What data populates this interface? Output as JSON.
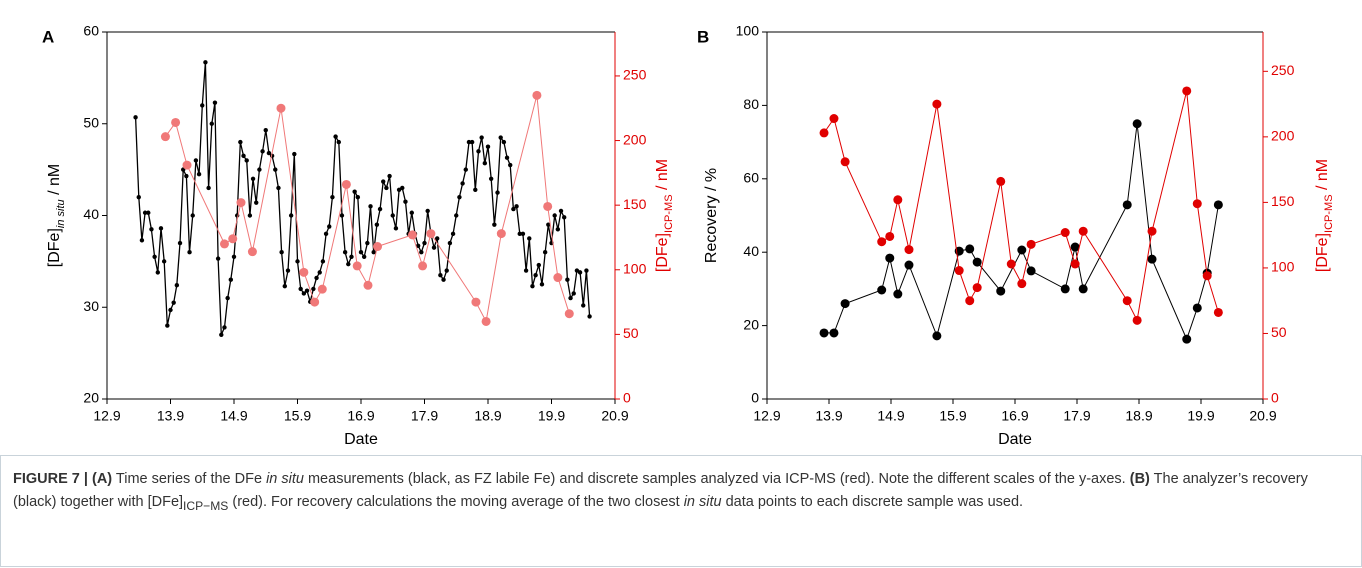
{
  "chart_data": [
    {
      "type": "line",
      "panel_label": "A",
      "xlabel": "Date",
      "ylabel": [
        "[DFe]",
        "in situ",
        " / nM"
      ],
      "y2label": [
        "[DFe]",
        "ICP-MS",
        " / nM"
      ],
      "xlim": [
        12.9,
        20.9
      ],
      "xticks": [
        12.9,
        13.9,
        14.9,
        15.9,
        16.9,
        17.9,
        18.9,
        19.9,
        20.9
      ],
      "ylim": [
        20,
        60
      ],
      "yticks": [
        20,
        30,
        40,
        50,
        60
      ],
      "y2lim": [
        0,
        284
      ],
      "y2ticks": [
        0,
        50,
        100,
        150,
        200,
        250
      ],
      "y2color": "#e00000",
      "series": [
        {
          "color": "#000000",
          "x": [
            13.35,
            13.4,
            13.45,
            13.5,
            13.55,
            13.6,
            13.65,
            13.7,
            13.75,
            13.8,
            13.85,
            13.9,
            13.95,
            14,
            14.05,
            14.1,
            14.15,
            14.2,
            14.25,
            14.3,
            14.35,
            14.4,
            14.45,
            14.5,
            14.55,
            14.6,
            14.65,
            14.7,
            14.75,
            14.8,
            14.85,
            14.9,
            14.95,
            15,
            15.05,
            15.1,
            15.15,
            15.2,
            15.25,
            15.3,
            15.35,
            15.4,
            15.45,
            15.5,
            15.55,
            15.6,
            15.65,
            15.7,
            15.75,
            15.8,
            15.85,
            15.9,
            15.95,
            16,
            16.05,
            16.1,
            16.15,
            16.2,
            16.25,
            16.3,
            16.35,
            16.4,
            16.45,
            16.5,
            16.55,
            16.6,
            16.65,
            16.7,
            16.75,
            16.8,
            16.85,
            16.9,
            16.95,
            17,
            17.05,
            17.1,
            17.15,
            17.2,
            17.25,
            17.3,
            17.35,
            17.4,
            17.45,
            17.5,
            17.55,
            17.6,
            17.65,
            17.7,
            17.75,
            17.8,
            17.85,
            17.9,
            17.95,
            18,
            18.05,
            18.1,
            18.15,
            18.2,
            18.25,
            18.3,
            18.35,
            18.4,
            18.45,
            18.5,
            18.55,
            18.6,
            18.65,
            18.7,
            18.75,
            18.8,
            18.85,
            18.9,
            18.95,
            19,
            19.05,
            19.1,
            19.15,
            19.2,
            19.25,
            19.3,
            19.35,
            19.4,
            19.45,
            19.5,
            19.55,
            19.6,
            19.65,
            19.7,
            19.75,
            19.8,
            19.85,
            19.9,
            19.95,
            20,
            20.05,
            20.1,
            20.15,
            20.2,
            20.25,
            20.3,
            20.35,
            20.4,
            20.45,
            20.5
          ],
          "values": [
            50.7,
            42,
            37.3,
            40.3,
            40.3,
            38.5,
            35.5,
            33.8,
            38.6,
            35,
            28,
            29.7,
            30.5,
            32.4,
            37,
            45,
            44.3,
            36,
            40,
            46,
            44.5,
            52,
            56.7,
            43,
            50,
            52.3,
            35.3,
            27,
            27.8,
            31,
            33,
            35.5,
            40,
            48,
            46.5,
            46,
            40,
            44,
            41.4,
            45,
            47,
            49.3,
            46.8,
            46.5,
            45,
            43,
            36,
            32.3,
            34,
            40,
            46.7,
            35,
            32,
            31.5,
            31.8,
            30.6,
            32,
            33.2,
            33.8,
            35,
            38,
            38.8,
            42,
            48.6,
            48,
            40,
            36,
            34.7,
            35.5,
            42.6,
            42,
            36,
            35.5,
            37,
            41,
            36,
            39,
            40.7,
            43.7,
            43,
            44.3,
            40,
            38.6,
            42.8,
            43,
            41.5,
            38,
            40.3,
            38,
            36.7,
            36,
            37,
            40.5,
            38,
            36.5,
            37.5,
            33.5,
            33,
            34,
            37,
            38,
            40,
            42,
            43.5,
            45,
            48,
            48,
            42.8,
            47,
            48.5,
            45.7,
            47.5,
            44,
            39,
            42.5,
            48.5,
            48,
            46.3,
            45.5,
            40.7,
            41,
            38,
            38,
            34,
            37.5,
            32.3,
            33.5,
            34.6,
            32.5,
            36,
            39,
            37,
            40,
            38.5,
            40.5,
            39.8,
            33,
            31,
            31.5,
            34,
            33.8,
            30.2,
            34,
            29
          ]
        },
        {
          "color": "#f07878",
          "axis": "y2",
          "x": [
            13.82,
            13.98,
            14.16,
            14.75,
            14.88,
            15.01,
            15.19,
            15.64,
            16.0,
            16.17,
            16.29,
            16.67,
            16.84,
            17.01,
            17.16,
            17.71,
            17.87,
            18.0,
            18.71,
            18.87,
            19.11,
            19.67,
            19.84,
            20.0,
            20.18
          ],
          "values": [
            203,
            214,
            181,
            120,
            124,
            152,
            114,
            225,
            98,
            75,
            85,
            166,
            103,
            88,
            118,
            127,
            103,
            128,
            75,
            60,
            128,
            235,
            149,
            94,
            66
          ]
        }
      ]
    },
    {
      "type": "line",
      "panel_label": "B",
      "xlabel": "Date",
      "ylabel": "Recovery / %",
      "y2label": [
        "[DFe]",
        "ICP-MS",
        " / nM"
      ],
      "xlim": [
        12.9,
        20.9
      ],
      "xticks": [
        12.9,
        13.9,
        14.9,
        15.9,
        16.9,
        17.9,
        18.9,
        19.9,
        20.9
      ],
      "ylim": [
        0,
        100
      ],
      "yticks": [
        0,
        20,
        40,
        60,
        80,
        100
      ],
      "y2lim": [
        0,
        280
      ],
      "y2ticks": [
        0,
        50,
        100,
        150,
        200,
        250
      ],
      "y2color": "#e00000",
      "series": [
        {
          "color": "#000000",
          "x": [
            13.82,
            13.98,
            14.16,
            14.75,
            14.88,
            15.01,
            15.19,
            15.64,
            16.0,
            16.17,
            16.29,
            16.67,
            17.01,
            17.16,
            17.71,
            17.87,
            18.0,
            18.71,
            18.87,
            19.11,
            19.67,
            19.84,
            20.0,
            20.18
          ],
          "values": [
            18,
            18,
            26,
            29.7,
            38.4,
            28.6,
            36.5,
            17.2,
            40.3,
            40.9,
            37.3,
            29.4,
            40.6,
            34.9,
            30,
            41.4,
            30,
            52.9,
            75,
            38.1,
            16.3,
            24.8,
            34.3,
            52.9
          ]
        },
        {
          "color": "#e00000",
          "axis": "y2",
          "x": [
            13.82,
            13.98,
            14.16,
            14.75,
            14.88,
            15.01,
            15.19,
            15.64,
            16.0,
            16.17,
            16.29,
            16.67,
            16.84,
            17.01,
            17.16,
            17.71,
            17.87,
            18.0,
            18.71,
            18.87,
            19.11,
            19.67,
            19.84,
            20.0,
            20.18
          ],
          "values": [
            203,
            214,
            181,
            120,
            124,
            152,
            114,
            225,
            98,
            75,
            85,
            166,
            103,
            88,
            118,
            127,
            103,
            128,
            75,
            60,
            128,
            235,
            149,
            94,
            66
          ]
        }
      ]
    }
  ],
  "caption": {
    "parts": [
      "FIGURE 7 | ",
      "(A)",
      " Time series of the DFe ",
      "in situ",
      " measurements (black, as FZ labile Fe) and discrete samples analyzed via ICP-MS (red). Note the different scales of the y-axes. ",
      "(B)",
      " The analyzer’s recovery (black) together with [DFe]",
      "ICP−MS",
      " (red). For recovery calculations the moving average of the two closest ",
      "in situ",
      " data points to each discrete sample was used."
    ]
  }
}
